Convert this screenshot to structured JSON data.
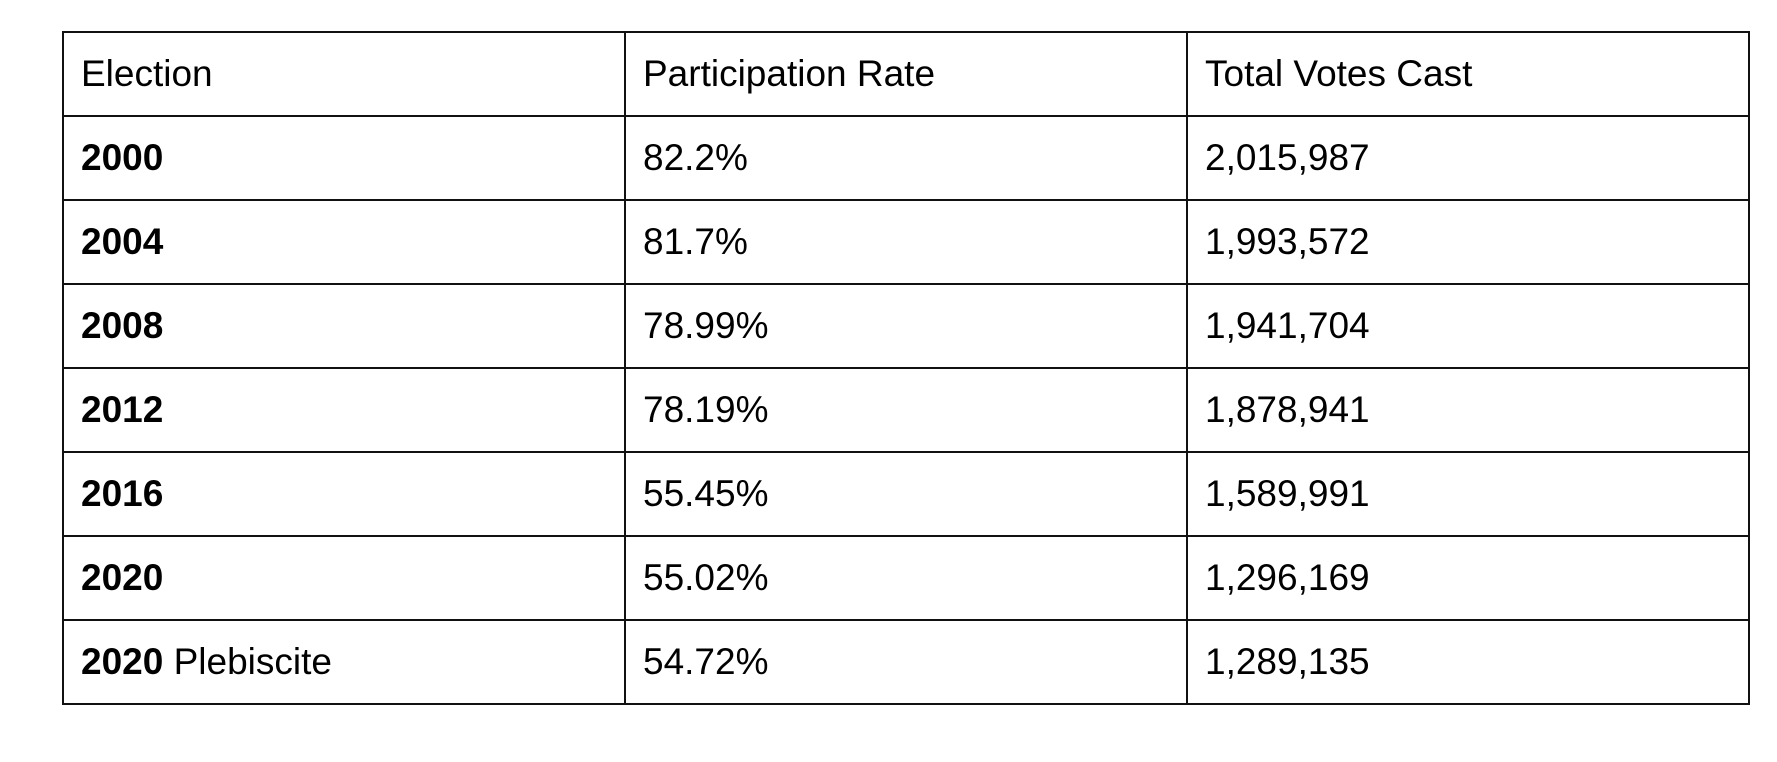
{
  "table": {
    "headers": [
      "Election",
      "Participation Rate",
      "Total Votes Cast"
    ],
    "rows": [
      {
        "year": "2000",
        "suffix": "",
        "rate": "82.2%",
        "votes": "2,015,987"
      },
      {
        "year": "2004",
        "suffix": "",
        "rate": "81.7%",
        "votes": "1,993,572"
      },
      {
        "year": "2008",
        "suffix": "",
        "rate": "78.99%",
        "votes": "1,941,704"
      },
      {
        "year": "2012",
        "suffix": "",
        "rate": "78.19%",
        "votes": "1,878,941"
      },
      {
        "year": "2016",
        "suffix": "",
        "rate": "55.45%",
        "votes": "1,589,991"
      },
      {
        "year": "2020",
        "suffix": "",
        "rate": "55.02%",
        "votes": "1,296,169"
      },
      {
        "year": "2020",
        "suffix": " Plebiscite",
        "rate": "54.72%",
        "votes": "1,289,135"
      }
    ]
  }
}
